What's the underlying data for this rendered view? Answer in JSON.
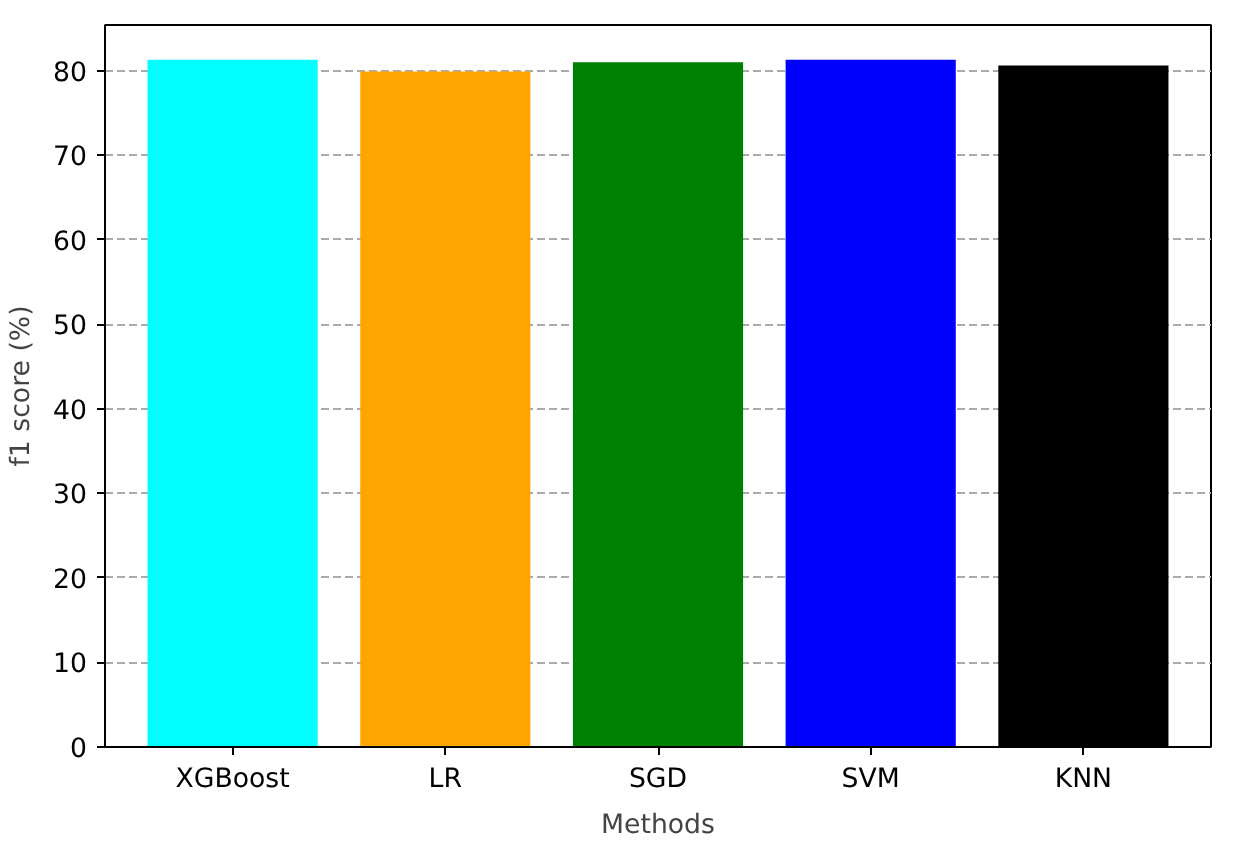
{
  "chart_data": {
    "type": "bar",
    "xlabel": "Methods",
    "ylabel": "f1 score (%)",
    "categories": [
      "XGBoost",
      "LR",
      "SGD",
      "SVM",
      "KNN"
    ],
    "values": [
      81.3,
      79.9,
      81.0,
      81.3,
      80.6
    ],
    "colors": [
      "#00ffff",
      "#ffa500",
      "#008000",
      "#0000ff",
      "#000000"
    ],
    "ylim": [
      0,
      85.4
    ],
    "yticks": [
      0,
      10,
      20,
      30,
      40,
      50,
      60,
      70,
      80
    ],
    "grid": "y"
  }
}
